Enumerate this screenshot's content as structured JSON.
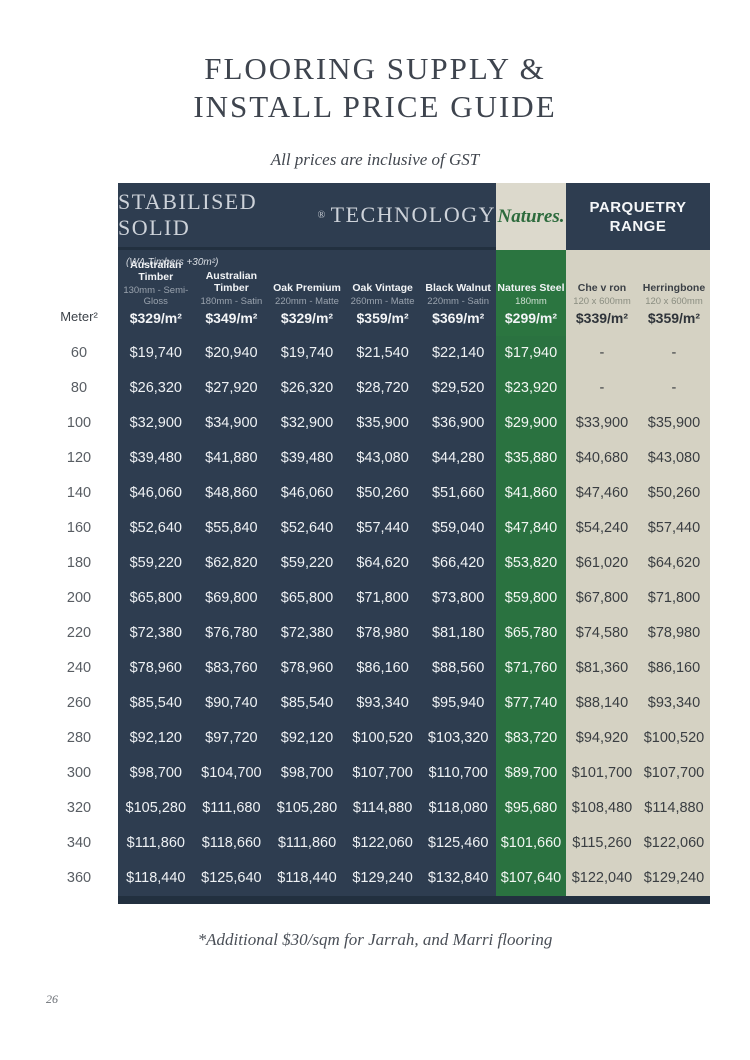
{
  "page": {
    "title_line1": "FLOORING SUPPLY &",
    "title_line2": "INSTALL PRICE GUIDE",
    "subtitle": "All prices are inclusive of GST",
    "footnote": "*Additional $30/sqm for Jarrah, and Marri flooring",
    "page_number": "26"
  },
  "colors": {
    "navy": "#2e3d50",
    "green": "#2b7540",
    "beige": "#d5d2c3",
    "title_text": "#3e444e",
    "header_serif_text": "#cdd2d9",
    "natures_green": "#2d6b3d"
  },
  "table": {
    "groups": {
      "stabilised_pre": "STABILISED SOLID",
      "stabilised_reg": "®",
      "stabilised_post": " TECHNOLOGY",
      "natures_logo": "Natures.",
      "parquetry": "PARQUETRY RANGE"
    },
    "note": "(WA Timbers +30m²)",
    "row_label_header": "Meter²",
    "column_groups": [
      "navy",
      "navy",
      "navy",
      "navy",
      "navy",
      "green",
      "beige",
      "beige"
    ],
    "columns": [
      {
        "name": "Australian Timber",
        "spec": "130mm - Semi-Gloss",
        "rate": "$329/m²"
      },
      {
        "name": "Australian Timber",
        "spec": "180mm - Satin",
        "rate": "$349/m²"
      },
      {
        "name": "Oak Premium",
        "spec": "220mm - Matte",
        "rate": "$329/m²"
      },
      {
        "name": "Oak Vintage",
        "spec": "260mm - Matte",
        "rate": "$359/m²"
      },
      {
        "name": "Black Walnut",
        "spec": "220mm - Satin",
        "rate": "$369/m²"
      },
      {
        "name": "Natures Steel",
        "spec": "180mm",
        "rate": "$299/m²"
      },
      {
        "name": "Che v ron",
        "spec": "120 x 600mm",
        "rate": "$339/m²"
      },
      {
        "name": "Herringbone",
        "spec": "120 x 600mm",
        "rate": "$359/m²"
      }
    ],
    "rows": [
      {
        "label": "60",
        "values": [
          "$19,740",
          "$20,940",
          "$19,740",
          "$21,540",
          "$22,140",
          "$17,940",
          "-",
          "-"
        ]
      },
      {
        "label": "80",
        "values": [
          "$26,320",
          "$27,920",
          "$26,320",
          "$28,720",
          "$29,520",
          "$23,920",
          "-",
          "-"
        ]
      },
      {
        "label": "100",
        "values": [
          "$32,900",
          "$34,900",
          "$32,900",
          "$35,900",
          "$36,900",
          "$29,900",
          "$33,900",
          "$35,900"
        ]
      },
      {
        "label": "120",
        "values": [
          "$39,480",
          "$41,880",
          "$39,480",
          "$43,080",
          "$44,280",
          "$35,880",
          "$40,680",
          "$43,080"
        ]
      },
      {
        "label": "140",
        "values": [
          "$46,060",
          "$48,860",
          "$46,060",
          "$50,260",
          "$51,660",
          "$41,860",
          "$47,460",
          "$50,260"
        ]
      },
      {
        "label": "160",
        "values": [
          "$52,640",
          "$55,840",
          "$52,640",
          "$57,440",
          "$59,040",
          "$47,840",
          "$54,240",
          "$57,440"
        ]
      },
      {
        "label": "180",
        "values": [
          "$59,220",
          "$62,820",
          "$59,220",
          "$64,620",
          "$66,420",
          "$53,820",
          "$61,020",
          "$64,620"
        ]
      },
      {
        "label": "200",
        "values": [
          "$65,800",
          "$69,800",
          "$65,800",
          "$71,800",
          "$73,800",
          "$59,800",
          "$67,800",
          "$71,800"
        ]
      },
      {
        "label": "220",
        "values": [
          "$72,380",
          "$76,780",
          "$72,380",
          "$78,980",
          "$81,180",
          "$65,780",
          "$74,580",
          "$78,980"
        ]
      },
      {
        "label": "240",
        "values": [
          "$78,960",
          "$83,760",
          "$78,960",
          "$86,160",
          "$88,560",
          "$71,760",
          "$81,360",
          "$86,160"
        ]
      },
      {
        "label": "260",
        "values": [
          "$85,540",
          "$90,740",
          "$85,540",
          "$93,340",
          "$95,940",
          "$77,740",
          "$88,140",
          "$93,340"
        ]
      },
      {
        "label": "280",
        "values": [
          "$92,120",
          "$97,720",
          "$92,120",
          "$100,520",
          "$103,320",
          "$83,720",
          "$94,920",
          "$100,520"
        ]
      },
      {
        "label": "300",
        "values": [
          "$98,700",
          "$104,700",
          "$98,700",
          "$107,700",
          "$110,700",
          "$89,700",
          "$101,700",
          "$107,700"
        ]
      },
      {
        "label": "320",
        "values": [
          "$105,280",
          "$111,680",
          "$105,280",
          "$114,880",
          "$118,080",
          "$95,680",
          "$108,480",
          "$114,880"
        ]
      },
      {
        "label": "340",
        "values": [
          "$111,860",
          "$118,660",
          "$111,860",
          "$122,060",
          "$125,460",
          "$101,660",
          "$115,260",
          "$122,060"
        ]
      },
      {
        "label": "360",
        "values": [
          "$118,440",
          "$125,640",
          "$118,440",
          "$129,240",
          "$132,840",
          "$107,640",
          "$122,040",
          "$129,240"
        ]
      }
    ]
  }
}
